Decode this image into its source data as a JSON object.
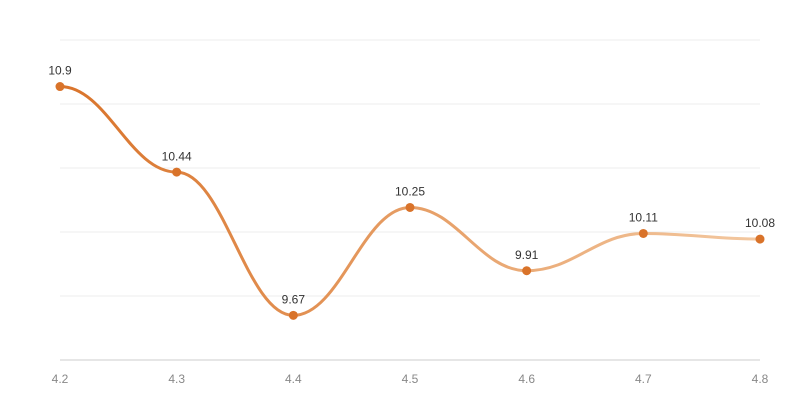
{
  "chart_data": {
    "type": "line",
    "categories": [
      "4.2",
      "4.3",
      "4.4",
      "4.5",
      "4.6",
      "4.7",
      "4.8"
    ],
    "values": [
      10.9,
      10.44,
      9.67,
      10.25,
      9.91,
      10.11,
      10.08
    ],
    "color": "#d9732a",
    "line_colors": [
      "#d9732a",
      "#f3c8a0"
    ],
    "ylim": [
      9.43,
      11.15
    ],
    "yticks": [
      9.43,
      9.774,
      10.118,
      10.462,
      10.806,
      11.15
    ],
    "grid": true,
    "smooth": true
  }
}
